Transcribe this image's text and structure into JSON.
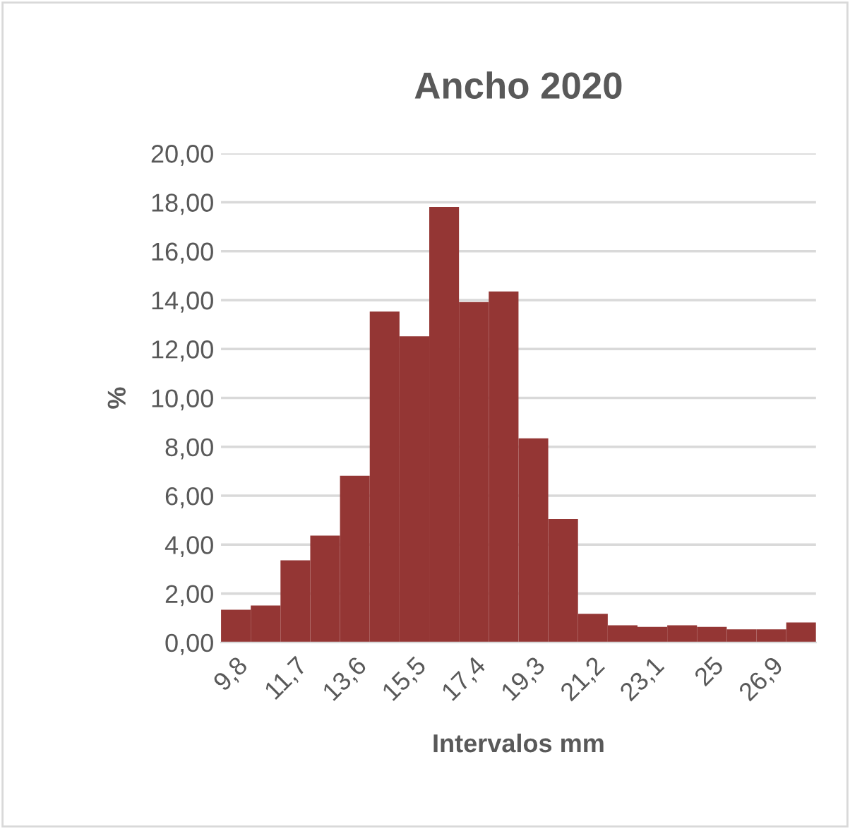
{
  "chart_data": {
    "type": "bar",
    "title": "Ancho 2020",
    "xlabel": "Intervalos mm",
    "ylabel": "%",
    "categories": [
      "9,8",
      null,
      "11,7",
      null,
      "13,6",
      null,
      "15,5",
      null,
      "17,4",
      null,
      "19,3",
      null,
      "21,2",
      null,
      "23,1",
      null,
      "25",
      null,
      "26,9",
      null
    ],
    "values": [
      1.34,
      1.51,
      3.36,
      4.37,
      6.82,
      13.53,
      12.52,
      17.81,
      13.92,
      14.35,
      8.35,
      5.05,
      1.17,
      0.7,
      0.64,
      0.7,
      0.64,
      0.54,
      0.54,
      0.82
    ],
    "color": "#943634",
    "ylim": [
      0,
      20
    ],
    "yticks": [
      {
        "value": 0,
        "label": "0,00"
      },
      {
        "value": 2,
        "label": "2,00"
      },
      {
        "value": 4,
        "label": "4,00"
      },
      {
        "value": 6,
        "label": "6,00"
      },
      {
        "value": 8,
        "label": "8,00"
      },
      {
        "value": 10,
        "label": "10,00"
      },
      {
        "value": 12,
        "label": "12,00"
      },
      {
        "value": 14,
        "label": "14,00"
      },
      {
        "value": 16,
        "label": "16,00"
      },
      {
        "value": 18,
        "label": "18,00"
      },
      {
        "value": 20,
        "label": "20,00"
      }
    ],
    "grid": "y",
    "legend": false
  }
}
